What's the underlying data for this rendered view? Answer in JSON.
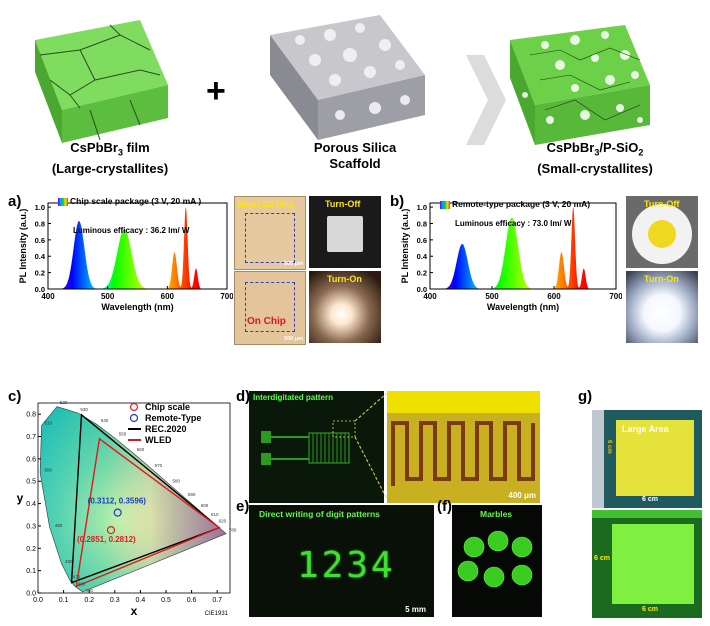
{
  "top": {
    "film_label_1": "CsPbBr",
    "film_label_sub": "3",
    "film_label_2": " film",
    "film_label_3": "(Large-crystallites)",
    "plus": "+",
    "silica_label_1": "Porous Silica",
    "silica_label_2": "Scaffold",
    "composite_label_1": "CsPbBr",
    "composite_label_sub1": "3",
    "composite_label_mid": "/P-SiO",
    "composite_label_sub2": "2",
    "composite_label_3": "(Small-crystallites)"
  },
  "panel_a": {
    "letter": "a)",
    "legend": "Chip scale package (3 V, 20 mA )",
    "efficacy": "Luminous efficacy : 36.2 lm/ W",
    "photo_blue_chip": "Blue LED Chip",
    "photo_on_chip": "On Chip",
    "scale1": "500 μm",
    "scale2": "500 μm",
    "photo_off": "Turn-Off",
    "photo_on": "Turn-On"
  },
  "panel_b": {
    "letter": "b)",
    "legend": "Remote-type package (3 V, 20 mA)",
    "efficacy": "Luminous efficacy : 73.0 lm/ W",
    "photo_off": "Turn-Off",
    "photo_on": "Turn-On"
  },
  "chart_data": [
    {
      "type": "line",
      "panel": "a",
      "xlabel": "Wavelength (nm)",
      "ylabel": "PL Intensity (a.u.)",
      "xlim": [
        400,
        700
      ],
      "ylim": [
        0,
        1.05
      ],
      "xticks": [
        400,
        500,
        600,
        700
      ],
      "yticks": [
        0.0,
        0.2,
        0.4,
        0.6,
        0.8,
        1.0
      ],
      "peaks": [
        {
          "center": 452,
          "height": 0.83,
          "width": 9
        },
        {
          "center": 528,
          "height": 0.73,
          "width": 12
        },
        {
          "center": 612,
          "height": 0.45,
          "width": 4
        },
        {
          "center": 631,
          "height": 1.0,
          "width": 3
        },
        {
          "center": 648,
          "height": 0.25,
          "width": 3
        }
      ]
    },
    {
      "type": "line",
      "panel": "b",
      "xlabel": "Wavelength (nm)",
      "ylabel": "PL Intensity (a.u.)",
      "xlim": [
        400,
        700
      ],
      "ylim": [
        0,
        1.05
      ],
      "xticks": [
        400,
        500,
        600,
        700
      ],
      "yticks": [
        0.0,
        0.2,
        0.4,
        0.6,
        0.8,
        1.0
      ],
      "peaks": [
        {
          "center": 452,
          "height": 0.55,
          "width": 9
        },
        {
          "center": 532,
          "height": 0.87,
          "width": 10
        },
        {
          "center": 612,
          "height": 0.45,
          "width": 4
        },
        {
          "center": 631,
          "height": 1.0,
          "width": 3
        },
        {
          "center": 648,
          "height": 0.25,
          "width": 3
        }
      ]
    },
    {
      "type": "scatter",
      "panel": "c",
      "xlabel": "x",
      "ylabel": "y",
      "xlim": [
        0,
        0.75
      ],
      "ylim": [
        0,
        0.85
      ],
      "xticks": [
        0.0,
        0.1,
        0.2,
        0.3,
        0.4,
        0.5,
        0.6,
        0.7
      ],
      "yticks": [
        0.0,
        0.1,
        0.2,
        0.3,
        0.4,
        0.5,
        0.6,
        0.7,
        0.8
      ],
      "footer": "CIE1931",
      "legend": [
        "Chip scale",
        "Remote-Type",
        "REC.2020",
        "WLED"
      ],
      "points": [
        {
          "name": "Chip scale",
          "x": 0.2851,
          "y": 0.2812,
          "label": "(0.2851, 0.2812)",
          "color": "#e02020"
        },
        {
          "name": "Remote-Type",
          "x": 0.3112,
          "y": 0.3596,
          "label": "(0.3112, 0.3596)",
          "color": "#1a3fc0"
        }
      ],
      "rec2020": [
        [
          0.708,
          0.292
        ],
        [
          0.17,
          0.797
        ],
        [
          0.131,
          0.046
        ]
      ],
      "wled": [
        [
          0.708,
          0.292
        ],
        [
          0.24,
          0.69
        ],
        [
          0.15,
          0.03
        ]
      ],
      "wavelength_labels": [
        "380",
        "460",
        "470",
        "480",
        "490",
        "500",
        "510",
        "520",
        "530",
        "540",
        "550",
        "560",
        "570",
        "580",
        "590",
        "600",
        "610",
        "620",
        "780"
      ]
    }
  ],
  "panel_c": {
    "letter": "c)"
  },
  "panel_d": {
    "letter": "d)",
    "title": "Interdigitated pattern",
    "scale": "400 μm"
  },
  "panel_e": {
    "letter": "e)",
    "title": "Direct writing of digit patterns",
    "digits": "1234",
    "scale": "5 mm"
  },
  "panel_f": {
    "letter": "(f)",
    "title": "Marbles"
  },
  "panel_g": {
    "letter": "g)",
    "title": "Large Area",
    "dim1": "6 cm",
    "dim2": "6 cm",
    "dim3": "6 cm",
    "dim4": "6 cm"
  }
}
